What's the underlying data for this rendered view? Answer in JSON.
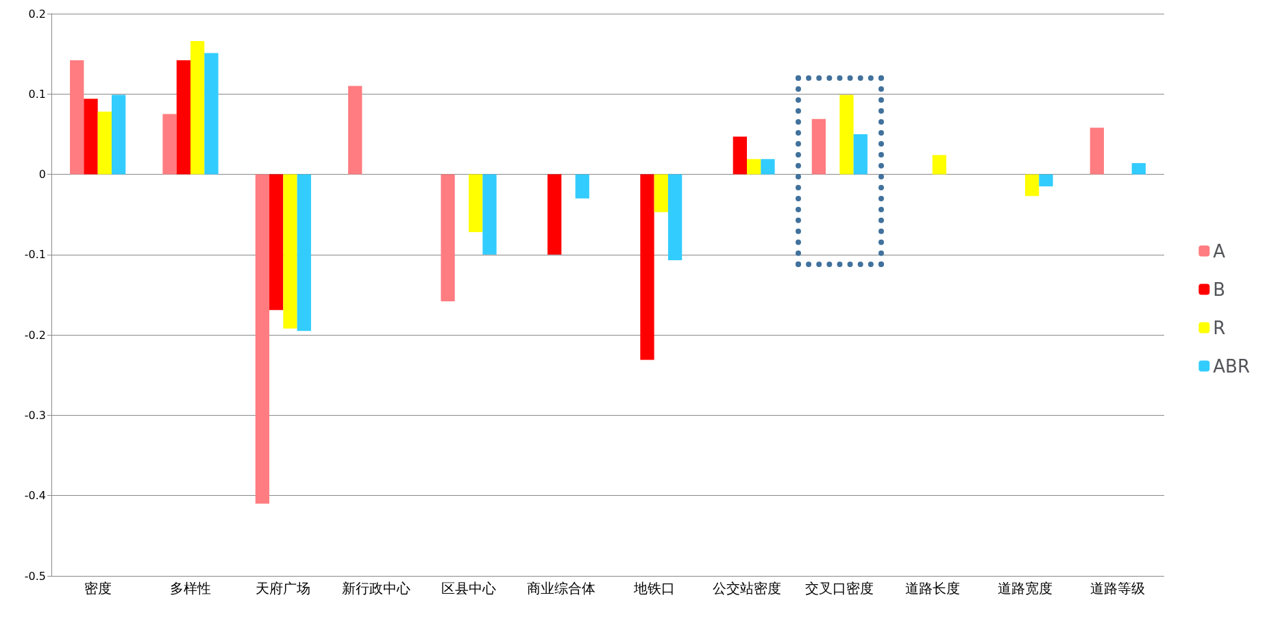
{
  "chart_data": {
    "type": "bar",
    "categories": [
      "密度",
      "多样性",
      "天府广场",
      "新行政中心",
      "区县中心",
      "商业综合体",
      "地铁口",
      "公交站密度",
      "交叉口密度",
      "道路长度",
      "道路宽度",
      "道路等级"
    ],
    "series": [
      {
        "name": "A",
        "color": "#ff7c80",
        "values": [
          0.142,
          0.075,
          -0.41,
          0.11,
          -0.158,
          0,
          0,
          0,
          0.069,
          0,
          0,
          0.058
        ]
      },
      {
        "name": "B",
        "color": "#ff0000",
        "values": [
          0.094,
          0.142,
          -0.169,
          0,
          0,
          -0.1,
          -0.231,
          0.047,
          0,
          0,
          0,
          0
        ]
      },
      {
        "name": "R",
        "color": "#ffff00",
        "values": [
          0.078,
          0.166,
          -0.192,
          0,
          -0.072,
          0,
          -0.047,
          0.019,
          0.099,
          0.024,
          -0.027,
          0
        ]
      },
      {
        "name": "ABR",
        "color": "#33ccff",
        "values": [
          0.099,
          0.151,
          -0.195,
          0,
          -0.1,
          -0.03,
          -0.107,
          0.019,
          0.05,
          0,
          -0.015,
          0.014
        ]
      }
    ],
    "ylim": [
      -0.5,
      0.2
    ],
    "yticks": [
      -0.5,
      -0.4,
      -0.3,
      -0.2,
      -0.1,
      0,
      0.1,
      0.2
    ],
    "grid": "y",
    "legend": "right"
  }
}
